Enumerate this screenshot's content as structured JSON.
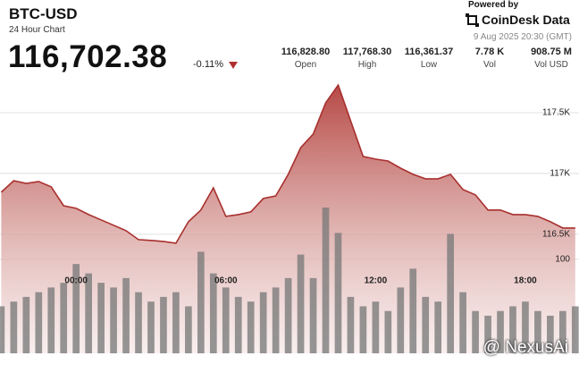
{
  "header": {
    "title": "BTC-USD",
    "subtitle": "24 Hour Chart",
    "price": "116,702.38",
    "change": "-0.11%"
  },
  "stats": [
    {
      "value": "116,828.80",
      "label": "Open"
    },
    {
      "value": "117,768.30",
      "label": "High"
    },
    {
      "value": "116,361.37",
      "label": "Low"
    },
    {
      "value": "7.78 K",
      "label": "Vol"
    },
    {
      "value": "908.75 M",
      "label": "Vol USD"
    }
  ],
  "branding": {
    "powered": "Powered by",
    "name": "CoinDesk Data",
    "timestamp": "9 Aug 2025 20:30 (GMT)"
  },
  "watermark": "@ NexusAi",
  "chart_data": {
    "type": "combo",
    "x": [
      -3,
      -2.5,
      -2,
      -1.5,
      -1,
      -0.5,
      0,
      0.5,
      1,
      1.5,
      2,
      2.5,
      3,
      3.5,
      4,
      4.5,
      5,
      5.5,
      6,
      6.5,
      7,
      7.5,
      8,
      8.5,
      9,
      9.5,
      10,
      10.5,
      11,
      11.5,
      12,
      12.5,
      13,
      13.5,
      14,
      14.5,
      15,
      15.5,
      16,
      16.5,
      17,
      17.5,
      18,
      18.5,
      19,
      19.5,
      20
    ],
    "xlim": [
      -3.05,
      20.15
    ],
    "xticks": [
      {
        "value": 0,
        "label": "00:00"
      },
      {
        "value": 6,
        "label": "06:00"
      },
      {
        "value": 12,
        "label": "12:00"
      },
      {
        "value": 18,
        "label": "18:00"
      }
    ],
    "ylim": [
      115520,
      117780
    ],
    "yticks": [
      {
        "value": 116500,
        "label": "116.5K"
      },
      {
        "value": 117000,
        "label": "117K"
      },
      {
        "value": 117500,
        "label": "117.5K"
      }
    ],
    "y2lim": [
      0,
      292
    ],
    "y2ticks": [
      100
    ],
    "grid": true,
    "series": [
      {
        "type": "area",
        "color": "#a8302e",
        "values": [
          116846,
          116941,
          116919,
          116934,
          116890,
          116735,
          116713,
          116662,
          116618,
          116574,
          116529,
          116456,
          116449,
          116441,
          116426,
          116603,
          116699,
          116882,
          116647,
          116662,
          116684,
          116794,
          116816,
          116993,
          117213,
          117324,
          117581,
          117728,
          117434,
          117140,
          117118,
          117103,
          117044,
          116993,
          116956,
          116956,
          116993,
          116868,
          116824,
          116699,
          116699,
          116662,
          116662,
          116647,
          116603,
          116551,
          116551
        ]
      },
      {
        "type": "bar",
        "axis": "y2",
        "color": "#7a7a7a",
        "values": [
          50,
          55,
          60,
          65,
          70,
          75,
          95,
          85,
          75,
          70,
          80,
          65,
          55,
          60,
          65,
          50,
          108,
          85,
          70,
          60,
          55,
          65,
          70,
          80,
          105,
          80,
          155,
          128,
          60,
          50,
          55,
          45,
          70,
          90,
          60,
          55,
          127,
          65,
          45,
          40,
          45,
          50,
          55,
          45,
          40,
          45,
          50
        ]
      }
    ]
  }
}
